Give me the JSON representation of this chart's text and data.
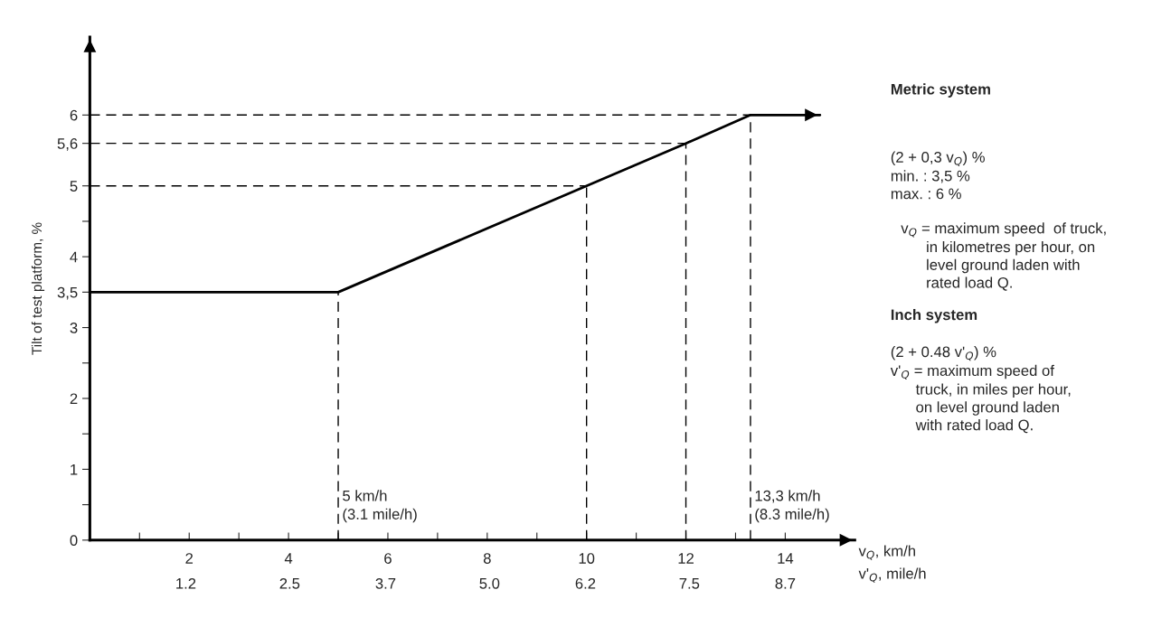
{
  "chart_data": {
    "type": "line",
    "ylabel": "Tilt of test platform, %",
    "xlabel": "v$_{Q}$, km/h",
    "x2label": "v'$_{Q}$, mile/h",
    "x2lim": [
      0,
      9.57
    ],
    "x2ticks": [
      1.2,
      2.5,
      3.7,
      {
        "value": 5.0,
        "label": "5.0"
      },
      6.2,
      7.5,
      8.7
    ],
    "x": [
      0,
      5,
      10,
      12,
      13.3,
      14.7
    ],
    "series": [
      {
        "color": "#000000",
        "values": [
          3.5,
          3.5,
          5,
          5.6,
          6,
          6
        ]
      }
    ],
    "xlim": [
      0,
      15.4
    ],
    "ylim": [
      0,
      7.1
    ],
    "xticks": [
      {
        "value": 1,
        "label": null
      },
      2,
      {
        "value": 3,
        "label": null
      },
      4,
      {
        "value": 5,
        "label": null
      },
      6,
      {
        "value": 7,
        "label": null
      },
      8,
      {
        "value": 9,
        "label": null
      },
      10,
      {
        "value": 11,
        "label": null
      },
      12,
      {
        "value": 13,
        "label": null
      },
      14
    ],
    "yticks": [
      0,
      {
        "value": 0.5,
        "label": null
      },
      1,
      {
        "value": 1.5,
        "label": null
      },
      2,
      {
        "value": 2.5,
        "label": null
      },
      3,
      {
        "value": 3.5,
        "label": "3,5"
      },
      4,
      {
        "value": 4.5,
        "label": null
      },
      5,
      {
        "value": 5.6,
        "label": "5,6"
      },
      6
    ],
    "ref_lines": [
      {
        "axis": "x",
        "value": 5,
        "label": "5 km/h\n(3.1 mile/h)",
        "line_style": "dashed"
      },
      {
        "axis": "x",
        "value": 10,
        "line_style": "dashed"
      },
      {
        "axis": "x",
        "value": 12,
        "line_style": "dashed"
      },
      {
        "axis": "x",
        "value": 13.3,
        "label": "13,3 km/h\n(8.3 mile/h)",
        "line_style": "dashed"
      },
      {
        "axis": "y",
        "value": 5,
        "line_style": "dashed"
      },
      {
        "axis": "y",
        "value": 5.6,
        "line_style": "dashed"
      },
      {
        "axis": "y",
        "value": 6,
        "line_style": "dashed"
      }
    ],
    "annotations": [
      "Metric system",
      "(2 + 0,3 v$_{Q}$) %\nmin. : 3,5 %\nmax. : 6 %",
      "v$_{Q}$ = maximum speed  of truck,\n      in kilometres per hour, on\n      level ground laden with\n      rated load Q.",
      "Inch system",
      "(2 + 0.48 v'$_{Q}$) %\nv'$_{Q}$ = maximum speed of\n      truck, in miles per hour,\n      on level ground laden\n      with rated load Q."
    ],
    "grid": false,
    "legend": false,
    "marker": "none",
    "line_style": "solid"
  }
}
